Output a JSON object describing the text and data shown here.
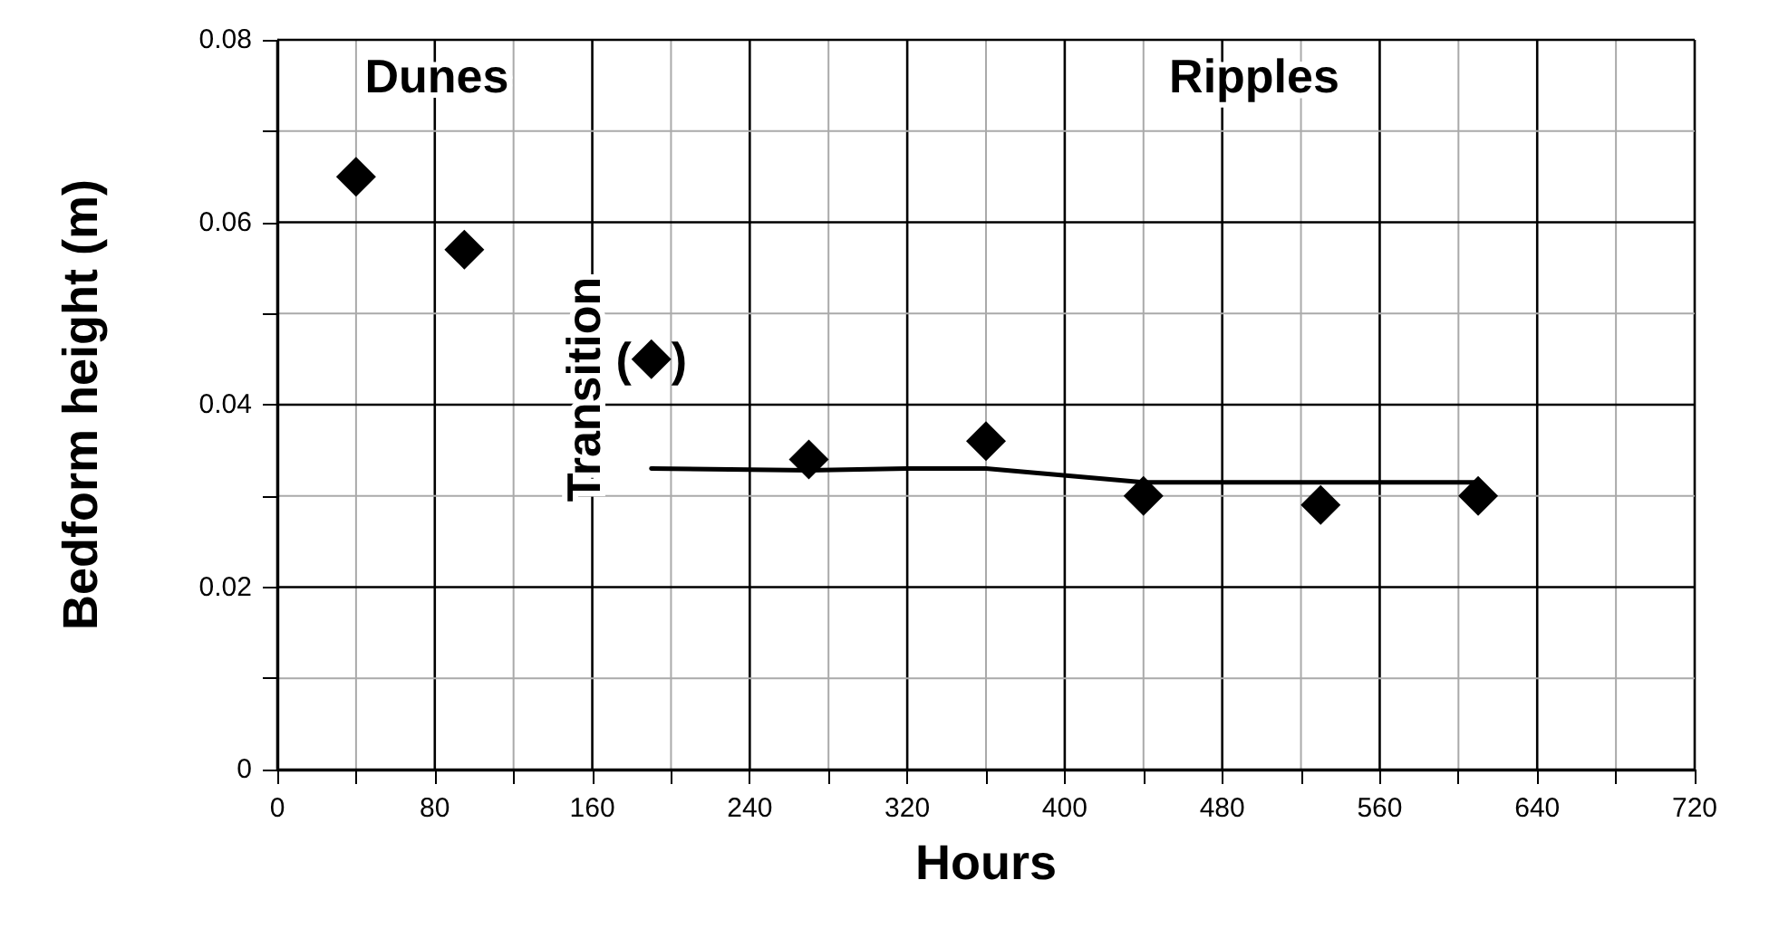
{
  "chart_data": {
    "type": "scatter",
    "xlabel": "Hours",
    "ylabel": "Bedform height (m)",
    "xlim": [
      0,
      720
    ],
    "ylim": [
      0,
      0.08
    ],
    "xticks": [
      0,
      {
        "value": 40,
        "label": null
      },
      80,
      {
        "value": 120,
        "label": null
      },
      160,
      {
        "value": 200,
        "label": null
      },
      240,
      {
        "value": 280,
        "label": null
      },
      320,
      {
        "value": 360,
        "label": null
      },
      400,
      {
        "value": 440,
        "label": null
      },
      480,
      {
        "value": 520,
        "label": null
      },
      560,
      {
        "value": 600,
        "label": null
      },
      640,
      {
        "value": 680,
        "label": null
      },
      720
    ],
    "yticks": [
      0,
      {
        "value": 0.01,
        "label": null
      },
      0.02,
      {
        "value": 0.03,
        "label": null
      },
      0.04,
      {
        "value": 0.05,
        "label": null
      },
      0.06,
      {
        "value": 0.07,
        "label": null
      },
      0.08
    ],
    "grid": true,
    "series": [
      {
        "color": "#000000",
        "marker": "diamond",
        "x": [
          40,
          95,
          190,
          270,
          360,
          440,
          530,
          610
        ],
        "values": [
          0.065,
          0.057,
          0.045,
          0.034,
          0.036,
          0.03,
          0.029,
          0.03
        ]
      },
      {
        "type": "line",
        "color": "#000000",
        "marker": "none",
        "line_style": "solid",
        "x": [
          190,
          270,
          320,
          360,
          440,
          610
        ],
        "values": [
          0.033,
          0.0328,
          0.033,
          0.033,
          0.0315,
          0.0315
        ]
      }
    ],
    "annotations": [
      "Dunes",
      "Ripples",
      "Transition",
      {
        "text": "( )",
        "x": 190,
        "y": 0.045
      }
    ]
  }
}
